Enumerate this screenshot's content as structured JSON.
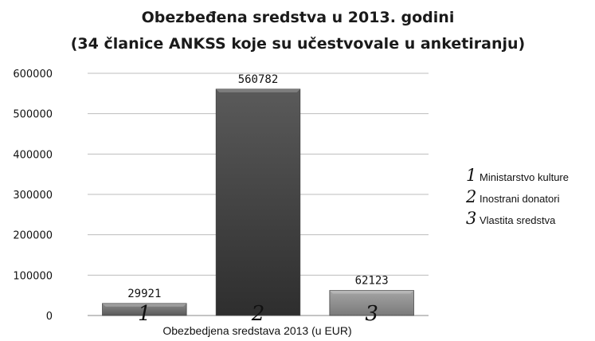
{
  "chart_data": {
    "type": "bar",
    "title_line1": "Obezbeđena sredstva u 2013. godini",
    "title_line2": "(34 članice ANKSS koje su učestvovale u anketiranju)",
    "xlabel": "Obezbedjena sredstava 2013 (u EUR)",
    "ylabel": "",
    "ylim": [
      0,
      600000
    ],
    "yticks": [
      "0",
      "100000",
      "200000",
      "300000",
      "400000",
      "500000",
      "600000"
    ],
    "grid": true,
    "categories": [
      "1",
      "2",
      "3"
    ],
    "values": [
      29921,
      560782,
      62123
    ],
    "data_labels": [
      "29921",
      "560782",
      "62123"
    ],
    "bar_colors": [
      "#6e6e6e",
      "#3a3a3a",
      "#8a8a8a"
    ],
    "legend_position": "right",
    "legend": [
      {
        "number": "1",
        "label": "Ministarstvo kulture"
      },
      {
        "number": "2",
        "label": "Inostrani donatori"
      },
      {
        "number": "3",
        "label": "Vlastita sredstva"
      }
    ]
  }
}
